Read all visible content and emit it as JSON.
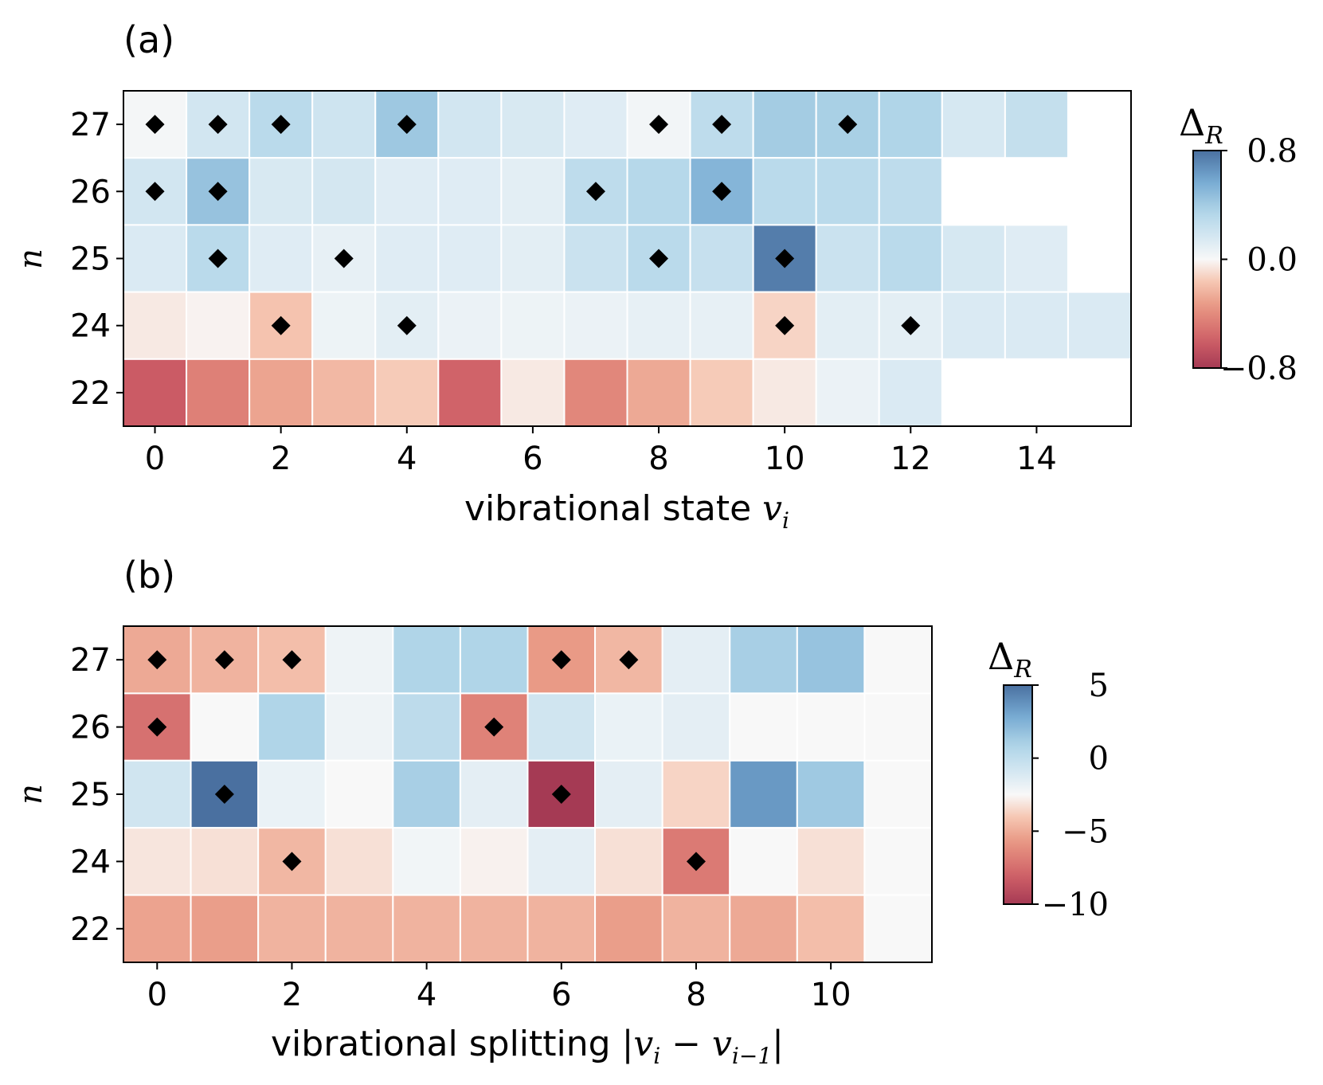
{
  "chart_data": [
    {
      "type": "heatmap",
      "panel_label": "(a)",
      "xlabel": "vibrational state ",
      "xlabel_math": "v",
      "xlabel_math_sub": "i",
      "ylabel": "n",
      "x_ticks": [
        "0",
        "2",
        "4",
        "6",
        "8",
        "10",
        "12",
        "14"
      ],
      "y_categories": [
        "27",
        "26",
        "25",
        "24",
        "22"
      ],
      "x_categories": [
        0,
        1,
        2,
        3,
        4,
        5,
        6,
        7,
        8,
        9,
        10,
        11,
        12,
        13,
        14,
        15
      ],
      "values": [
        [
          0.02,
          0.18,
          0.3,
          0.2,
          0.42,
          0.18,
          0.15,
          0.12,
          0.03,
          0.28,
          0.4,
          0.38,
          0.35,
          0.16,
          0.25,
          null
        ],
        [
          0.18,
          0.45,
          0.15,
          0.17,
          0.12,
          0.12,
          0.1,
          0.28,
          0.32,
          0.52,
          0.3,
          0.3,
          0.28,
          null,
          null,
          null
        ],
        [
          0.14,
          0.3,
          0.12,
          0.08,
          0.12,
          0.12,
          0.1,
          0.22,
          0.3,
          0.24,
          0.75,
          0.22,
          0.3,
          0.16,
          0.12,
          null
        ],
        [
          -0.05,
          -0.02,
          -0.18,
          0.05,
          0.1,
          0.06,
          0.05,
          0.06,
          0.08,
          0.08,
          -0.12,
          0.1,
          0.1,
          0.14,
          0.14,
          0.14
        ],
        [
          -0.62,
          -0.45,
          -0.3,
          -0.22,
          -0.15,
          -0.58,
          -0.05,
          -0.42,
          -0.28,
          -0.15,
          -0.05,
          0.06,
          0.14,
          null,
          null,
          null
        ]
      ],
      "markers": [
        [
          0,
          0
        ],
        [
          1,
          0
        ],
        [
          2,
          0
        ],
        [
          4,
          0
        ],
        [
          8,
          0
        ],
        [
          9,
          0
        ],
        [
          11,
          0
        ],
        [
          0,
          1
        ],
        [
          1,
          1
        ],
        [
          7,
          1
        ],
        [
          9,
          1
        ],
        [
          1,
          2
        ],
        [
          3,
          2
        ],
        [
          8,
          2
        ],
        [
          10,
          2
        ],
        [
          2,
          3
        ],
        [
          4,
          3
        ],
        [
          10,
          3
        ],
        [
          12,
          3
        ]
      ],
      "colorbar": {
        "label_main": "Δ",
        "label_sub": "R",
        "range": [
          -0.8,
          0.8
        ],
        "ticks": [
          0.8,
          0.0,
          -0.8
        ],
        "tick_labels": [
          "0.8",
          "0.0",
          "−0.8"
        ]
      }
    },
    {
      "type": "heatmap",
      "panel_label": "(b)",
      "xlabel": "vibrational splitting ",
      "xlabel_math": "|v",
      "xlabel_math_sub": "i",
      "xlabel_math_mid": " − v",
      "xlabel_math_sub2": "i−1",
      "xlabel_math_end": "|",
      "ylabel": "n",
      "x_ticks": [
        "0",
        "2",
        "4",
        "6",
        "8",
        "10"
      ],
      "y_categories": [
        "27",
        "26",
        "25",
        "24",
        "22"
      ],
      "x_categories": [
        0,
        1,
        2,
        3,
        4,
        5,
        6,
        7,
        8,
        9,
        10,
        11
      ],
      "values": [
        [
          -3.5,
          -3.0,
          -2.5,
          0.3,
          2.2,
          2.2,
          -4.2,
          -2.8,
          0.6,
          2.4,
          2.8,
          0.0
        ],
        [
          -6.5,
          0.0,
          2.2,
          0.3,
          1.8,
          -5.5,
          1.2,
          0.4,
          0.6,
          0.0,
          0.0,
          0.0
        ],
        [
          1.2,
          8.5,
          0.4,
          0.0,
          2.4,
          0.6,
          -10.0,
          0.6,
          -1.5,
          4.0,
          2.6,
          0.0
        ],
        [
          -0.8,
          -1.0,
          -2.8,
          -1.0,
          0.2,
          -0.3,
          0.6,
          -1.0,
          -6.0,
          0.0,
          -1.0,
          0.0
        ],
        [
          -3.8,
          -4.0,
          -3.0,
          -3.0,
          -3.0,
          -3.0,
          -3.0,
          -4.0,
          -3.0,
          -3.5,
          -2.5,
          0.0
        ]
      ],
      "markers": [
        [
          0,
          0
        ],
        [
          1,
          0
        ],
        [
          2,
          0
        ],
        [
          6,
          0
        ],
        [
          7,
          0
        ],
        [
          0,
          1
        ],
        [
          5,
          1
        ],
        [
          1,
          2
        ],
        [
          6,
          2
        ],
        [
          2,
          3
        ],
        [
          8,
          3
        ]
      ],
      "colorbar": {
        "label_main": "Δ",
        "label_sub": "R",
        "range": [
          -10,
          5
        ],
        "ticks": [
          5,
          0,
          -5,
          -10
        ],
        "tick_labels": [
          "5",
          "0",
          "−5",
          "−10"
        ]
      }
    }
  ]
}
